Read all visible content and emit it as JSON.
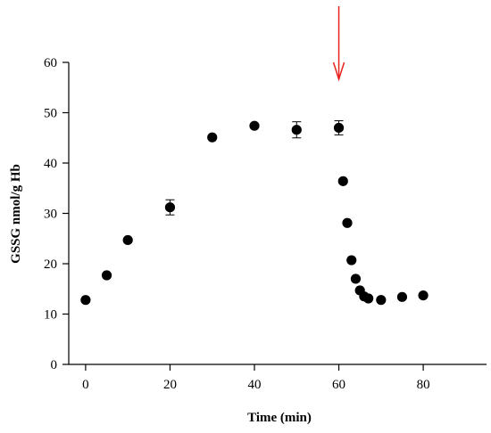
{
  "chart_data": {
    "type": "scatter",
    "title": "",
    "xlabel": "Time (min)",
    "ylabel": "GSSG nmol/g Hb",
    "xlim": [
      -4,
      95
    ],
    "ylim": [
      0,
      60
    ],
    "x_ticks": [
      0,
      20,
      40,
      60,
      80
    ],
    "y_ticks": [
      0,
      10,
      20,
      30,
      40,
      50,
      60
    ],
    "grid": false,
    "series": [
      {
        "points": [
          {
            "x": 0,
            "y": 12.8
          },
          {
            "x": 5,
            "y": 17.7
          },
          {
            "x": 10,
            "y": 24.7
          },
          {
            "x": 20,
            "y": 31.2,
            "err": 1.5
          },
          {
            "x": 30,
            "y": 45.1
          },
          {
            "x": 40,
            "y": 47.4
          },
          {
            "x": 50,
            "y": 46.6,
            "err": 1.6
          },
          {
            "x": 60,
            "y": 47.0,
            "err": 1.4
          },
          {
            "x": 61,
            "y": 36.4
          },
          {
            "x": 62,
            "y": 28.1
          },
          {
            "x": 63,
            "y": 20.7
          },
          {
            "x": 64,
            "y": 17.0
          },
          {
            "x": 65,
            "y": 14.7
          },
          {
            "x": 66,
            "y": 13.5
          },
          {
            "x": 67,
            "y": 13.1
          },
          {
            "x": 70,
            "y": 12.8
          },
          {
            "x": 75,
            "y": 13.4
          },
          {
            "x": 80,
            "y": 13.7
          }
        ]
      }
    ],
    "annotations": [
      {
        "type": "arrow",
        "x": 60,
        "direction": "down",
        "color": "#e8221c"
      }
    ],
    "colors": {
      "marker": "#000000",
      "arrow": "#e8221c",
      "axis": "#000000"
    }
  }
}
